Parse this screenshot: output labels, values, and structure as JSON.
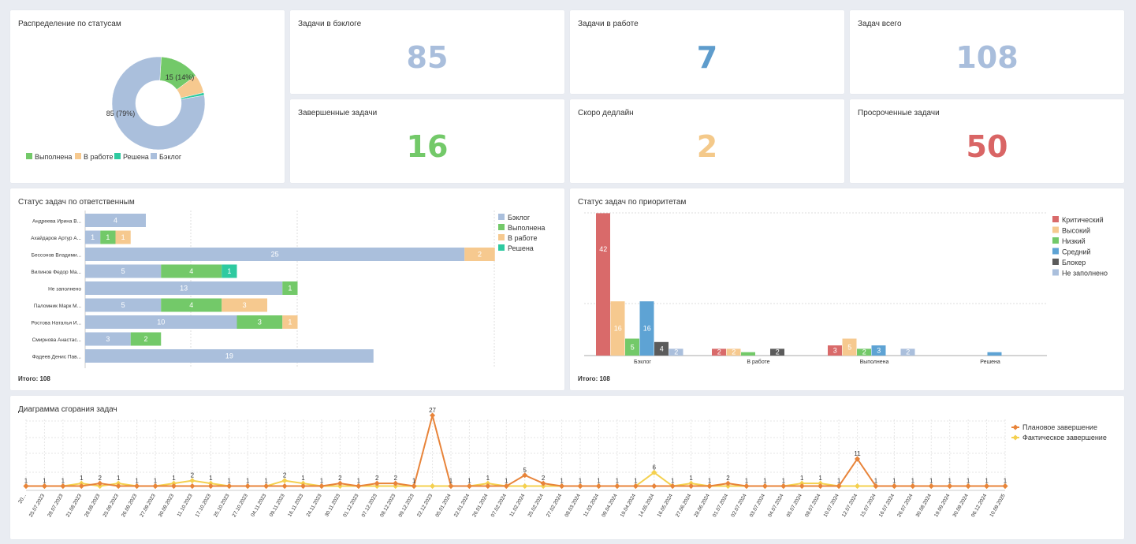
{
  "colors": {
    "backlog": "#aabfdc",
    "done": "#73c969",
    "inwork": "#f6c98f",
    "solved": "#2ecaa0",
    "critical": "#d96a6a",
    "high": "#f6c98f",
    "low": "#73c969",
    "medium": "#5ea3d4",
    "blocker": "#5b5b5b",
    "empty": "#aabfdc",
    "planned": "#e8843a",
    "actual": "#f4d04f"
  },
  "donut": {
    "title": "Распределение по статусам",
    "slices": [
      {
        "name": "Выполнена",
        "value": 15,
        "color": "#73c969"
      },
      {
        "name": "В работе",
        "value": 7,
        "color": "#f6c98f"
      },
      {
        "name": "Решена",
        "value": 1,
        "color": "#2ecaa0"
      },
      {
        "name": "Бэклог",
        "value": 85,
        "color": "#aabfdc"
      }
    ],
    "labels": [
      "15 (14%)",
      "85 (79%)"
    ],
    "legend": [
      "Выполнена",
      "В работе",
      "Решена",
      "Бэклог"
    ]
  },
  "kpis": [
    {
      "title": "Задачи в бэклоге",
      "value": "85",
      "color": "#a9bedc"
    },
    {
      "title": "Задачи в работе",
      "value": "7",
      "color": "#5e9ccc"
    },
    {
      "title": "Задач всего",
      "value": "108",
      "color": "#a9bedc"
    },
    {
      "title": "Завершенные задачи",
      "value": "16",
      "color": "#73c969"
    },
    {
      "title": "Скоро дедлайн",
      "value": "2",
      "color": "#f4c98a"
    },
    {
      "title": "Просроченные задачи",
      "value": "50",
      "color": "#d96565"
    }
  ],
  "by_person": {
    "title": "Статус задач по ответственным",
    "total": "Итого: 108",
    "legend": [
      "Бэклог",
      "Выполнена",
      "В работе",
      "Решена"
    ],
    "rows": [
      {
        "name": "Андреева Ирина В...",
        "values": [
          4,
          0,
          0,
          0
        ]
      },
      {
        "name": "Ахайдаров Артур А...",
        "values": [
          1,
          1,
          1,
          0
        ]
      },
      {
        "name": "Бессонов Владими...",
        "values": [
          25,
          0,
          2,
          0
        ]
      },
      {
        "name": "Вилинов Федор Ма...",
        "values": [
          5,
          4,
          0,
          1
        ]
      },
      {
        "name": "Не заполнено",
        "values": [
          13,
          1,
          0,
          0
        ]
      },
      {
        "name": "Паломник Марк М...",
        "values": [
          5,
          4,
          3,
          0
        ]
      },
      {
        "name": "Ростова Наталья И...",
        "values": [
          10,
          3,
          1,
          0
        ]
      },
      {
        "name": "Смирнова Анастас...",
        "values": [
          3,
          2,
          0,
          0
        ]
      },
      {
        "name": "Фадеев Денис Пав...",
        "values": [
          19,
          0,
          0,
          0
        ]
      }
    ]
  },
  "by_priority": {
    "title": "Статус задач по приоритетам",
    "total": "Итого: 108",
    "legend": [
      "Критический",
      "Высокий",
      "Низкий",
      "Средний",
      "Блокер",
      "Не заполнено"
    ],
    "groups": [
      {
        "name": "Бэклог",
        "values": [
          42,
          16,
          5,
          16,
          4,
          2
        ]
      },
      {
        "name": "В работе",
        "values": [
          2,
          2,
          1,
          0,
          2,
          0
        ]
      },
      {
        "name": "Выполнена",
        "values": [
          3,
          5,
          2,
          3,
          0,
          2
        ]
      },
      {
        "name": "Решена",
        "values": [
          0,
          0,
          0,
          1,
          0,
          0
        ]
      }
    ]
  },
  "burndown": {
    "title": "Диаграмма сгорания задач",
    "legend": [
      "Плановое завершение",
      "Фактическое завершение"
    ],
    "dates": [
      "20...",
      "25.07.2023",
      "28.07.2023",
      "21.08.2023",
      "28.08.2023",
      "25.09.2023",
      "26.09.2023",
      "27.09.2023",
      "30.09.2023",
      "11.10.2023",
      "17.10.2023",
      "25.10.2023",
      "27.10.2023",
      "04.11.2023",
      "09.11.2023",
      "16.11.2023",
      "24.11.2023",
      "30.11.2023",
      "01.12.2023",
      "07.12.2023",
      "08.12.2023",
      "09.12.2023",
      "22.12.2023",
      "05.01.2024",
      "22.01.2024",
      "26.01.2024",
      "07.02.2024",
      "11.02.2024",
      "25.02.2024",
      "27.02.2024",
      "08.03.2024",
      "11.03.2024",
      "09.04.2024",
      "19.04.2024",
      "14.05.2024",
      "16.05.2024",
      "27.06.2024",
      "28.06.2024",
      "01.07.2024",
      "02.07.2024",
      "03.07.2024",
      "04.07.2024",
      "05.07.2024",
      "08.07.2024",
      "10.07.2024",
      "12.07.2024",
      "15.07.2024",
      "16.07.2024",
      "26.07.2024",
      "30.08.2024",
      "19.09.2024",
      "30.09.2024",
      "06.12.2024",
      "10.09.2025"
    ],
    "planned": [
      1,
      1,
      1,
      1,
      2,
      1,
      1,
      1,
      1,
      1,
      1,
      1,
      1,
      1,
      1,
      1,
      1,
      2,
      1,
      2,
      2,
      1,
      27,
      1,
      1,
      1,
      1,
      5,
      2,
      1,
      1,
      1,
      1,
      1,
      1,
      1,
      1,
      1,
      2,
      1,
      1,
      1,
      1,
      1,
      1,
      11,
      1,
      1,
      1,
      1,
      1,
      1,
      1,
      1
    ],
    "actual": [
      1,
      1,
      1,
      2,
      1,
      2,
      1,
      1,
      2,
      3,
      2,
      1,
      1,
      1,
      3,
      2,
      1,
      1,
      1,
      1,
      1,
      1,
      1,
      1,
      1,
      2,
      1,
      1,
      1,
      1,
      1,
      1,
      1,
      1,
      6,
      1,
      2,
      1,
      1,
      1,
      1,
      1,
      2,
      2,
      1,
      1,
      1,
      1,
      1,
      1,
      1,
      1,
      1,
      1
    ],
    "point_labels": {
      "0": "1",
      "1": "1",
      "2": "1",
      "3": "1",
      "4": "2",
      "5": "1",
      "6": "1",
      "7": "1",
      "8": "1",
      "9": "2",
      "10": "1",
      "11": "1",
      "12": "1",
      "13": "1",
      "14": "2",
      "15": "1",
      "16": "1",
      "17": "2",
      "18": "1",
      "19": "2",
      "20": "2",
      "21": "1",
      "22": "27",
      "23": "1",
      "24": "1",
      "25": "1",
      "26": "1",
      "27": "5",
      "28": "2",
      "29": "1",
      "30": "1",
      "31": "1",
      "32": "1",
      "33": "1",
      "34": "6",
      "35": "1",
      "36": "1",
      "37": "1",
      "38": "2",
      "39": "1",
      "40": "1",
      "41": "1",
      "42": "1",
      "43": "1",
      "44": "1",
      "45": "11",
      "46": "1",
      "47": "1",
      "48": "1",
      "49": "1",
      "50": "1",
      "51": "1",
      "52": "1",
      "53": "1"
    }
  }
}
